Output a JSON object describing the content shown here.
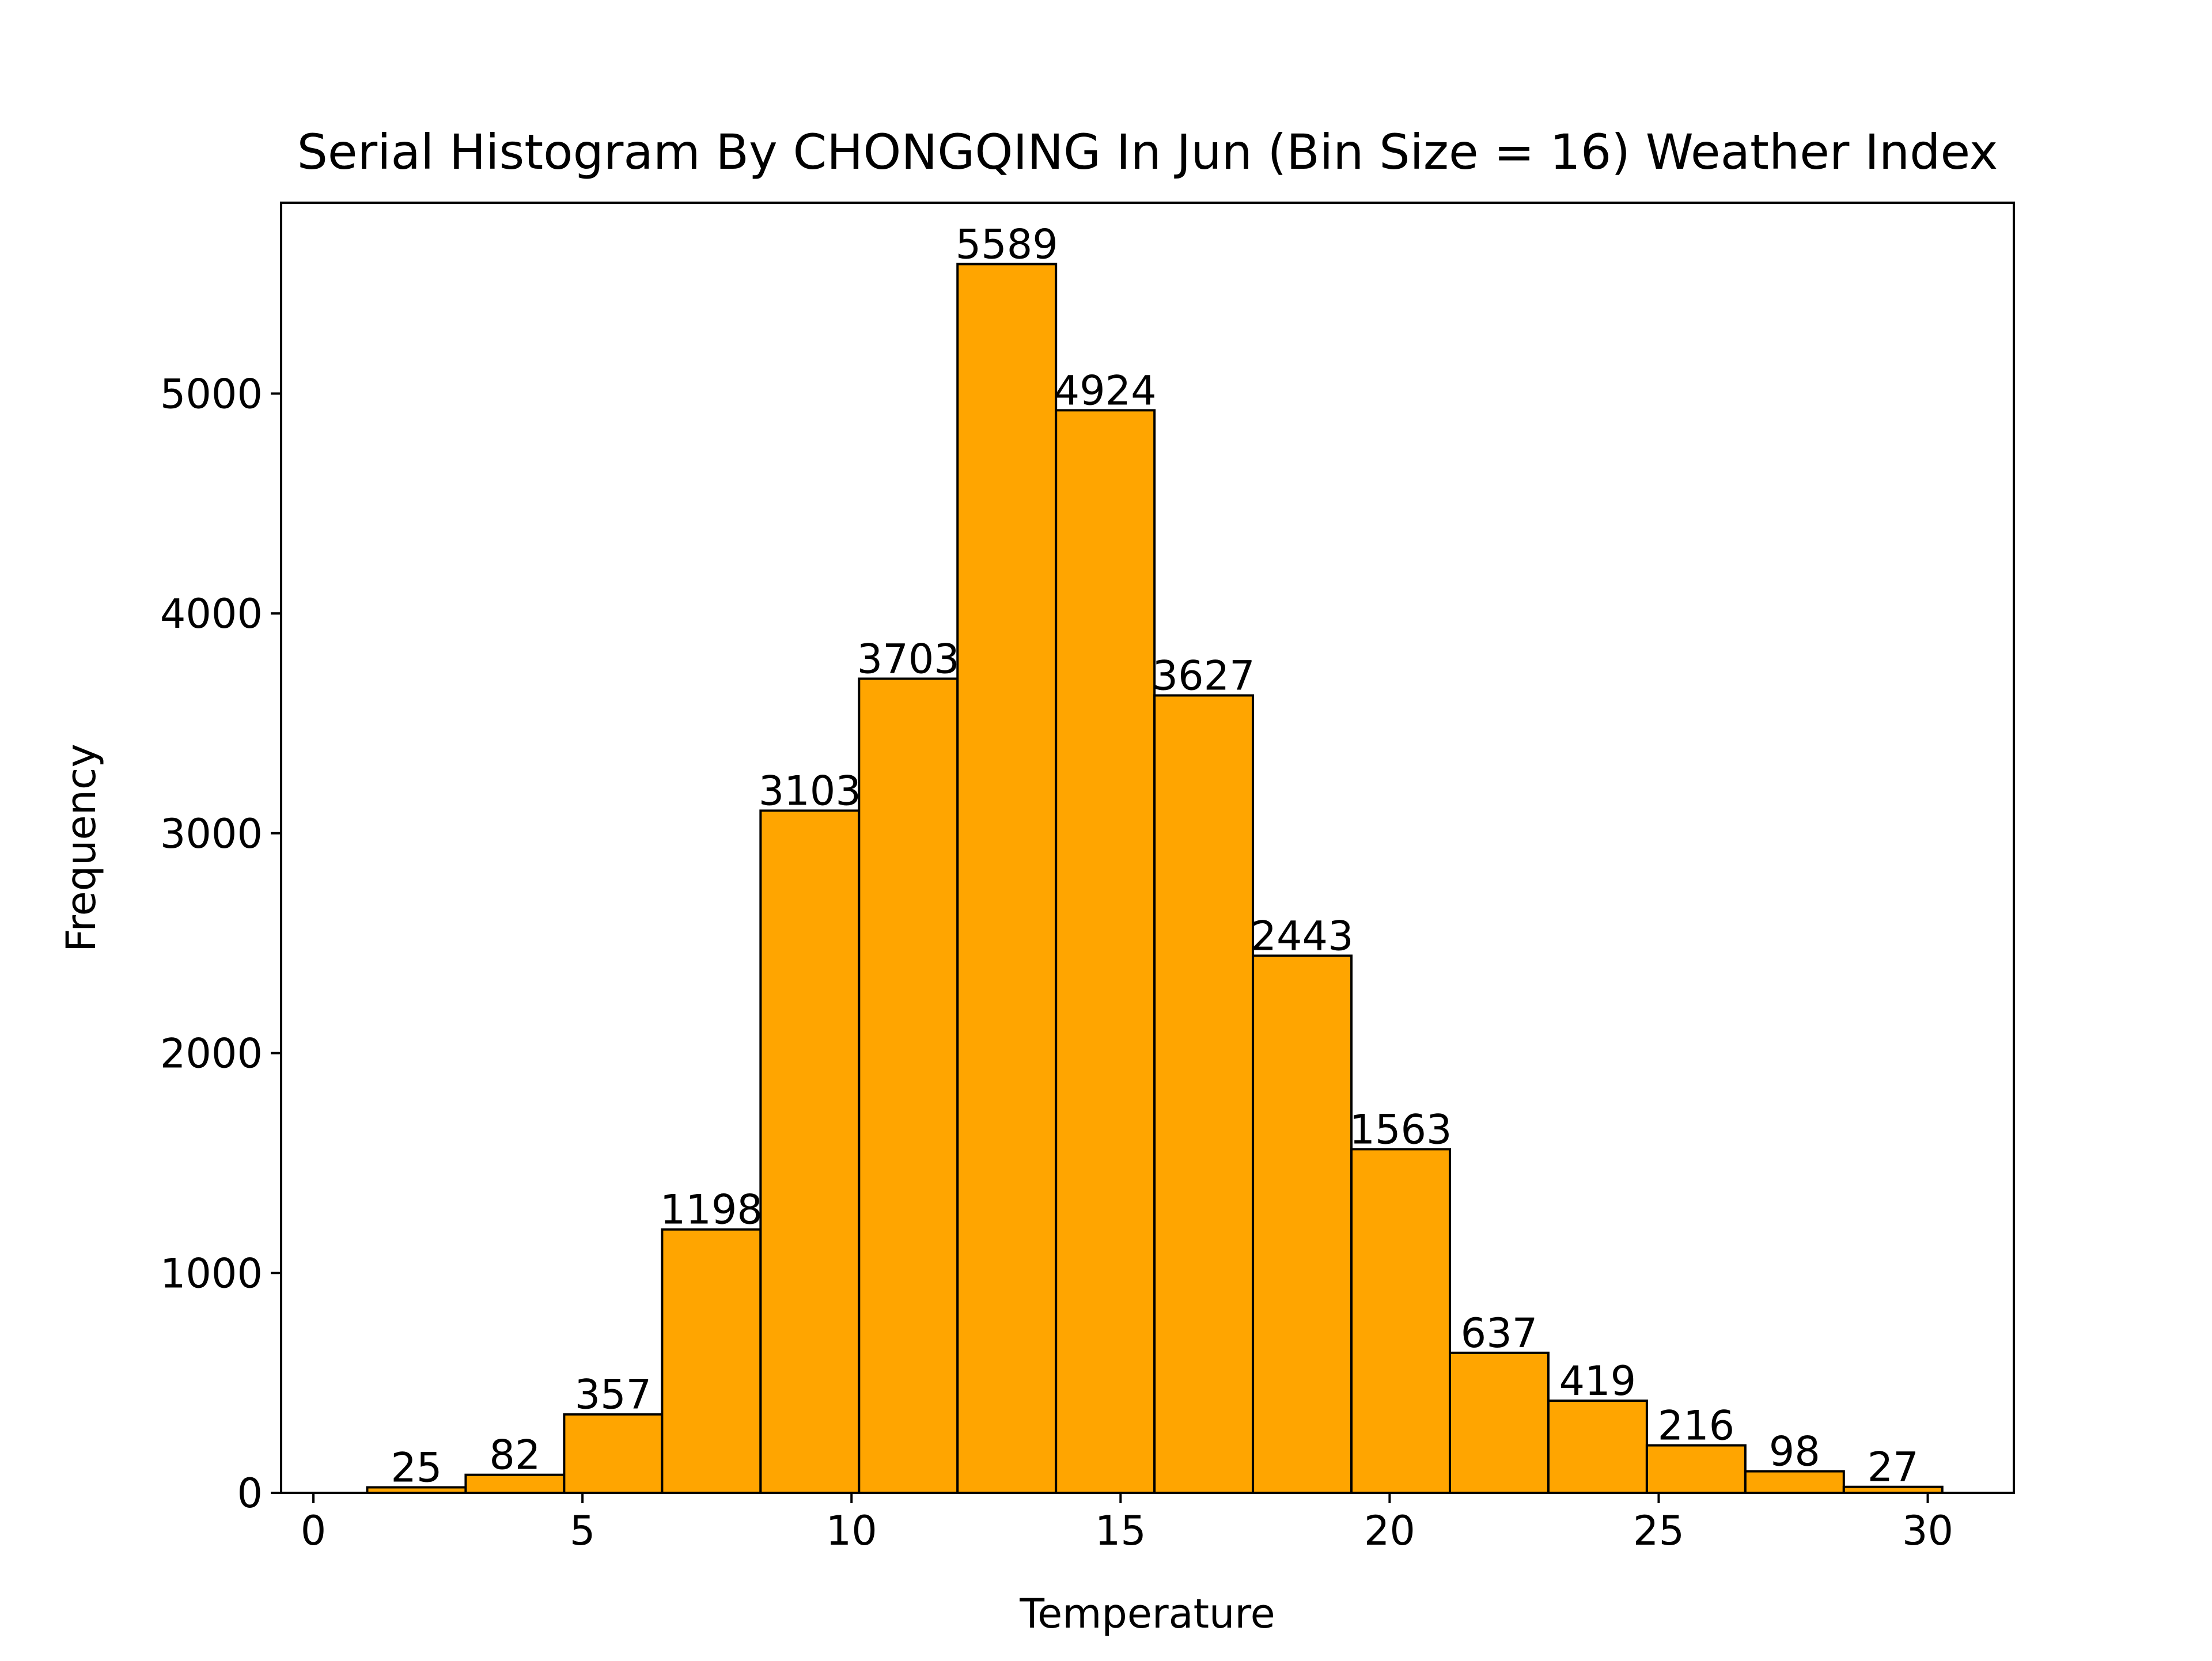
{
  "chart_data": {
    "type": "bar",
    "title": "Serial Histogram By CHONGQING In Jun (Bin Size = 16) Weather Index",
    "xlabel": "Temperature",
    "ylabel": "Frequency",
    "bin_edges": [
      1.0,
      2.83,
      4.66,
      6.48,
      8.31,
      10.14,
      11.97,
      13.8,
      15.63,
      17.46,
      19.29,
      21.12,
      22.95,
      24.78,
      26.61,
      28.44,
      30.27
    ],
    "values": [
      25,
      82,
      357,
      1198,
      3103,
      3703,
      5589,
      4924,
      3627,
      2443,
      1563,
      637,
      419,
      216,
      98,
      27
    ],
    "xlim": [
      -0.6,
      31.6
    ],
    "ylim": [
      0,
      5868
    ],
    "x_ticks": [
      0,
      5,
      10,
      15,
      20,
      25,
      30
    ],
    "y_ticks": [
      0,
      1000,
      2000,
      3000,
      4000,
      5000
    ],
    "bar_color": "#ffa500",
    "edge_color": "#000000",
    "grid": false,
    "legend": "none"
  }
}
